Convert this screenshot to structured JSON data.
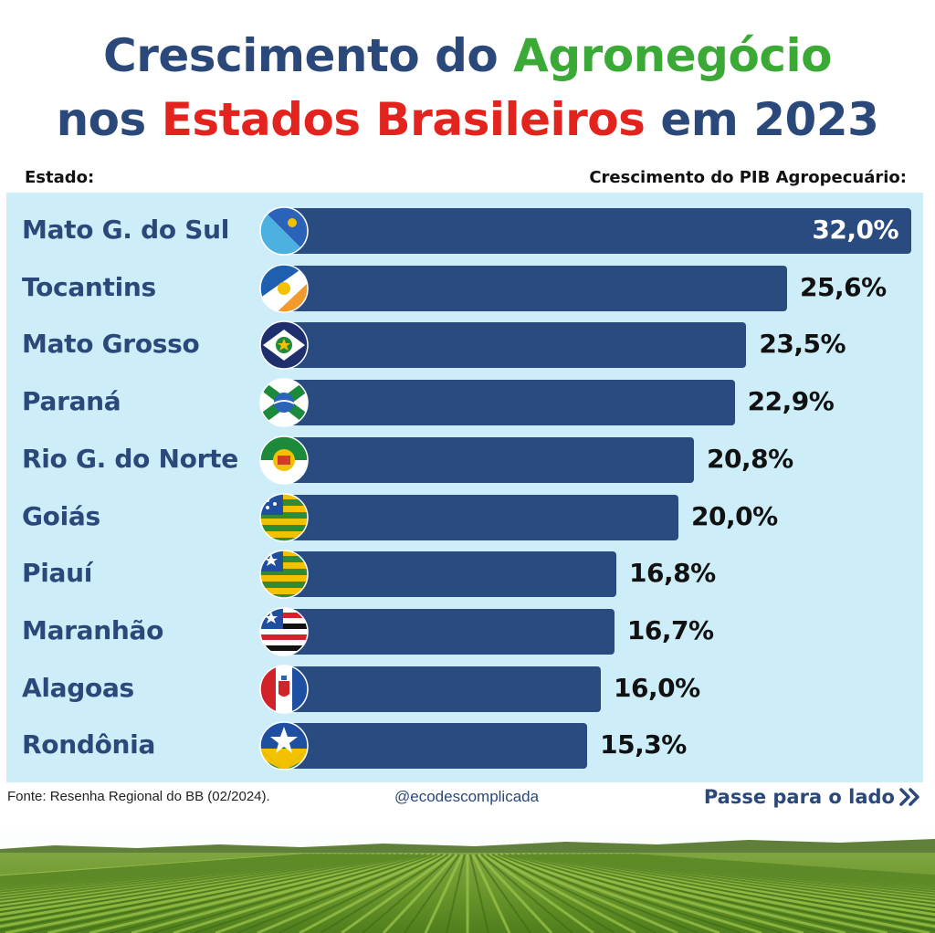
{
  "title": {
    "line1_a": "Crescimento do ",
    "line1_b": "Agronegócio",
    "line2_a": "nos ",
    "line2_b": "Estados Brasileiros",
    "line2_c": " em 2023"
  },
  "headers": {
    "left": "Estado:",
    "right": "Crescimento do PIB Agropecuário:"
  },
  "chart_data": {
    "type": "bar",
    "orientation": "horizontal",
    "categories": [
      "Mato G. do Sul",
      "Tocantins",
      "Mato Grosso",
      "Paraná",
      "Rio G. do Norte",
      "Goiás",
      "Piauí",
      "Maranhão",
      "Alagoas",
      "Rondônia"
    ],
    "values": [
      32.0,
      25.6,
      23.5,
      22.9,
      20.8,
      20.0,
      16.8,
      16.7,
      16.0,
      15.3
    ],
    "value_labels": [
      "32,0%",
      "25,6%",
      "23,5%",
      "22,9%",
      "20,8%",
      "20,0%",
      "16,8%",
      "16,7%",
      "16,0%",
      "15,3%"
    ],
    "flag_icons": [
      "ms-flag-icon",
      "to-flag-icon",
      "mt-flag-icon",
      "pr-flag-icon",
      "rn-flag-icon",
      "go-flag-icon",
      "pi-flag-icon",
      "ma-flag-icon",
      "al-flag-icon",
      "ro-flag-icon"
    ],
    "unit": "%",
    "xlim": [
      0,
      32
    ],
    "title": "",
    "xlabel": "",
    "ylabel": "",
    "grid": false,
    "bar_color": "#2a4b80"
  },
  "colors": {
    "title": "#2a4879",
    "accent_green": "#3aa935",
    "accent_red": "#e3231d",
    "panel_bg": "#cdeef9"
  },
  "footer": {
    "source": "Fonte: Resenha Regional do BB (02/2024).",
    "handle": "@ecodescomplicada",
    "next_label": "Passe para o lado",
    "next_icon": "double-chevron-right-icon"
  }
}
